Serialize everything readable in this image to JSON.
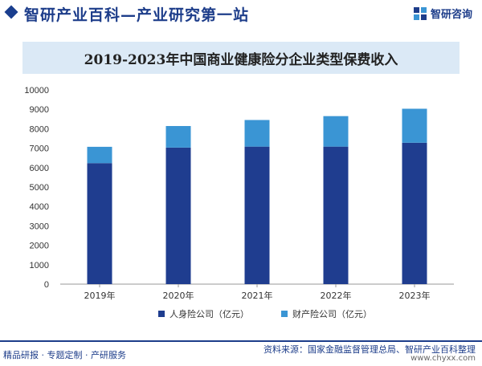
{
  "header": {
    "title": "智研产业百科—产业研究第一站",
    "logo_text": "智研咨询"
  },
  "colors": {
    "brand": "#1d3d8a",
    "series1": "#1f3d8f",
    "series2": "#3a95d4",
    "banner_bg": "#dbe9f6"
  },
  "chart_data": {
    "type": "bar",
    "stacked": true,
    "title": "2019-2023年中国商业健康险分企业类型保费收入",
    "categories": [
      "2019年",
      "2020年",
      "2021年",
      "2022年",
      "2023年"
    ],
    "series": [
      {
        "name": "人身险公司（亿元）",
        "values": [
          6230,
          7030,
          7080,
          7080,
          7280
        ]
      },
      {
        "name": "财产险公司（亿元）",
        "values": [
          840,
          1110,
          1370,
          1570,
          1750
        ]
      }
    ],
    "ylim": [
      0,
      10000
    ],
    "yticks": [
      "0",
      "1000",
      "2000",
      "3000",
      "4000",
      "5000",
      "6000",
      "7000",
      "8000",
      "9000",
      "10000"
    ],
    "grid": false,
    "legend_position": "bottom"
  },
  "footer": {
    "left": "精品研报 · 专题定制 · 产研服务",
    "source": "资料来源：国家金融监督管理总局、智研产业百科整理",
    "url": "www.chyxx.com"
  }
}
